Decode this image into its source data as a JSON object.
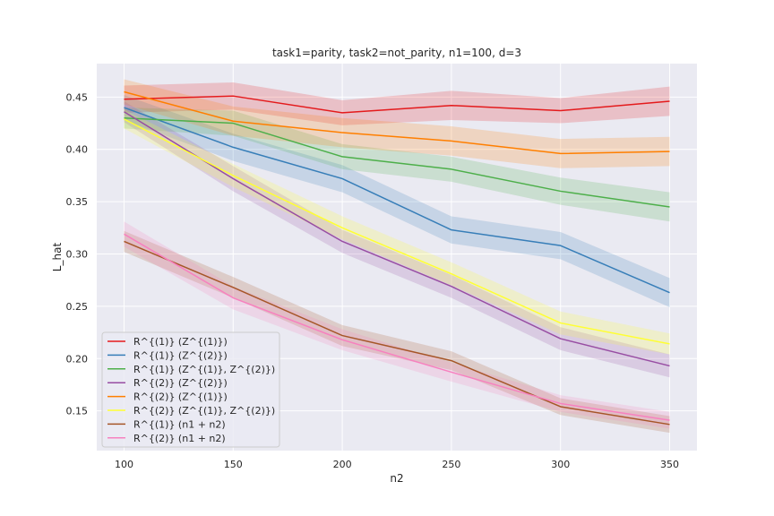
{
  "chart_data": {
    "type": "line",
    "title": "task1=parity, task2=not_parity, n1=100, d=3",
    "xlabel": "n2",
    "ylabel": "L_hat",
    "x": [
      100,
      150,
      200,
      250,
      300,
      350
    ],
    "xlim": [
      87.5,
      362.5
    ],
    "ylim": [
      0.112,
      0.482
    ],
    "xticks": [
      100,
      150,
      200,
      250,
      300,
      350
    ],
    "yticks": [
      0.15,
      0.2,
      0.25,
      0.3,
      0.35,
      0.4,
      0.45
    ],
    "ytick_labels": [
      "0.15",
      "0.20",
      "0.25",
      "0.30",
      "0.35",
      "0.40",
      "0.45"
    ],
    "grid": true,
    "legend_position": "lower-left",
    "series": [
      {
        "name": "R^{(1)} (Z^{(1)})",
        "color": "#e41a1c",
        "values": [
          0.448,
          0.451,
          0.435,
          0.442,
          0.437,
          0.446
        ],
        "band": [
          0.013,
          0.013,
          0.012,
          0.014,
          0.012,
          0.014
        ]
      },
      {
        "name": "R^{(1)} (Z^{(2)})",
        "color": "#377eb8",
        "values": [
          0.44,
          0.402,
          0.372,
          0.323,
          0.308,
          0.263
        ],
        "band": [
          0.012,
          0.013,
          0.013,
          0.013,
          0.013,
          0.014
        ]
      },
      {
        "name": "R^{(1)} (Z^{(1)}, Z^{(2)})",
        "color": "#4daf4a",
        "values": [
          0.43,
          0.425,
          0.393,
          0.381,
          0.36,
          0.345
        ],
        "band": [
          0.01,
          0.012,
          0.012,
          0.012,
          0.013,
          0.014
        ]
      },
      {
        "name": "R^{(2)} (Z^{(2)})",
        "color": "#984ea3",
        "values": [
          0.436,
          0.372,
          0.312,
          0.269,
          0.219,
          0.193
        ],
        "band": [
          0.01,
          0.012,
          0.011,
          0.011,
          0.011,
          0.011
        ]
      },
      {
        "name": "R^{(2)} (Z^{(1)})",
        "color": "#ff7f00",
        "values": [
          0.455,
          0.427,
          0.416,
          0.408,
          0.396,
          0.398
        ],
        "band": [
          0.012,
          0.014,
          0.014,
          0.014,
          0.014,
          0.014
        ]
      },
      {
        "name": "R^{(2)} (Z^{(1)}, Z^{(2)})",
        "color": "#ffff33",
        "values": [
          0.429,
          0.375,
          0.325,
          0.281,
          0.234,
          0.214
        ],
        "band": [
          0.009,
          0.011,
          0.011,
          0.011,
          0.011,
          0.01
        ]
      },
      {
        "name": "R^{(1)} (n1 + n2)",
        "color": "#a65628",
        "values": [
          0.312,
          0.268,
          0.222,
          0.198,
          0.154,
          0.137
        ],
        "band": [
          0.01,
          0.01,
          0.01,
          0.009,
          0.008,
          0.008
        ]
      },
      {
        "name": "R^{(2)} (n1 + n2)",
        "color": "#f781bf",
        "values": [
          0.319,
          0.258,
          0.218,
          0.187,
          0.157,
          0.141
        ],
        "band": [
          0.012,
          0.011,
          0.01,
          0.009,
          0.008,
          0.008
        ]
      }
    ]
  }
}
